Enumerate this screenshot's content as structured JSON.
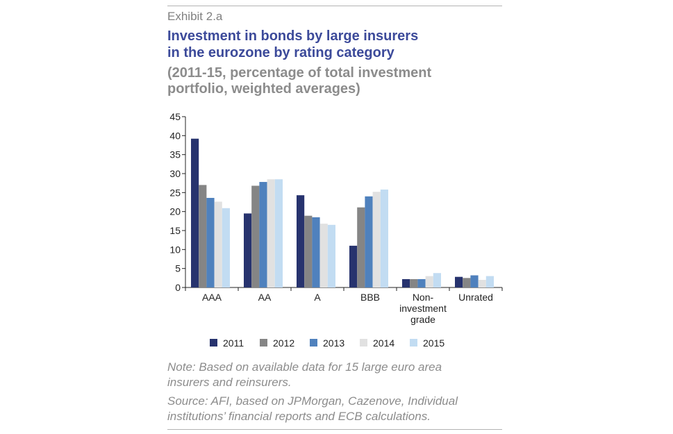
{
  "header": {
    "exhibit": "Exhibit 2.a",
    "title_line1": "Investment in bonds by large insurers",
    "title_line2": "in the eurozone by rating category",
    "subtitle_line1": "(2011-15, percentage of total investment",
    "subtitle_line2": "portfolio, weighted averages)"
  },
  "footer": {
    "note_line1": "Note: Based on available data for 15 large euro area",
    "note_line2": "insurers and reinsurers.",
    "source_line1": "Source: AFI, based on JPMorgan, Cazenove, Individual",
    "source_line2": "institutions’ financial reports and ECB calculations."
  },
  "chart_data": {
    "type": "bar",
    "title": "Investment in bonds by large insurers in the eurozone by rating category",
    "subtitle": "(2011-15, percentage of total investment portfolio, weighted averages)",
    "xlabel": "",
    "ylabel": "",
    "ylim": [
      0,
      45
    ],
    "yticks": [
      0,
      5,
      10,
      15,
      20,
      25,
      30,
      35,
      40,
      45
    ],
    "grid": false,
    "legend_position": "bottom",
    "categories": [
      [
        "AAA"
      ],
      [
        "AA"
      ],
      [
        "A"
      ],
      [
        "BBB"
      ],
      [
        "Non-",
        "investment",
        "grade"
      ],
      [
        "Unrated"
      ]
    ],
    "series": [
      {
        "name": "2011",
        "color": "#27336e",
        "values": [
          39.2,
          19.5,
          24.3,
          11.0,
          2.2,
          2.8
        ]
      },
      {
        "name": "2012",
        "color": "#858585",
        "values": [
          27.0,
          26.8,
          18.9,
          21.1,
          2.2,
          2.5
        ]
      },
      {
        "name": "2013",
        "color": "#4f81bd",
        "values": [
          23.6,
          27.8,
          18.5,
          24.0,
          2.2,
          3.2
        ]
      },
      {
        "name": "2014",
        "color": "#e1e1e1",
        "values": [
          22.6,
          28.5,
          16.8,
          25.2,
          3.0,
          2.0
        ]
      },
      {
        "name": "2015",
        "color": "#c2dcf2",
        "values": [
          20.9,
          28.5,
          16.5,
          25.8,
          3.8,
          3.0
        ]
      }
    ]
  }
}
